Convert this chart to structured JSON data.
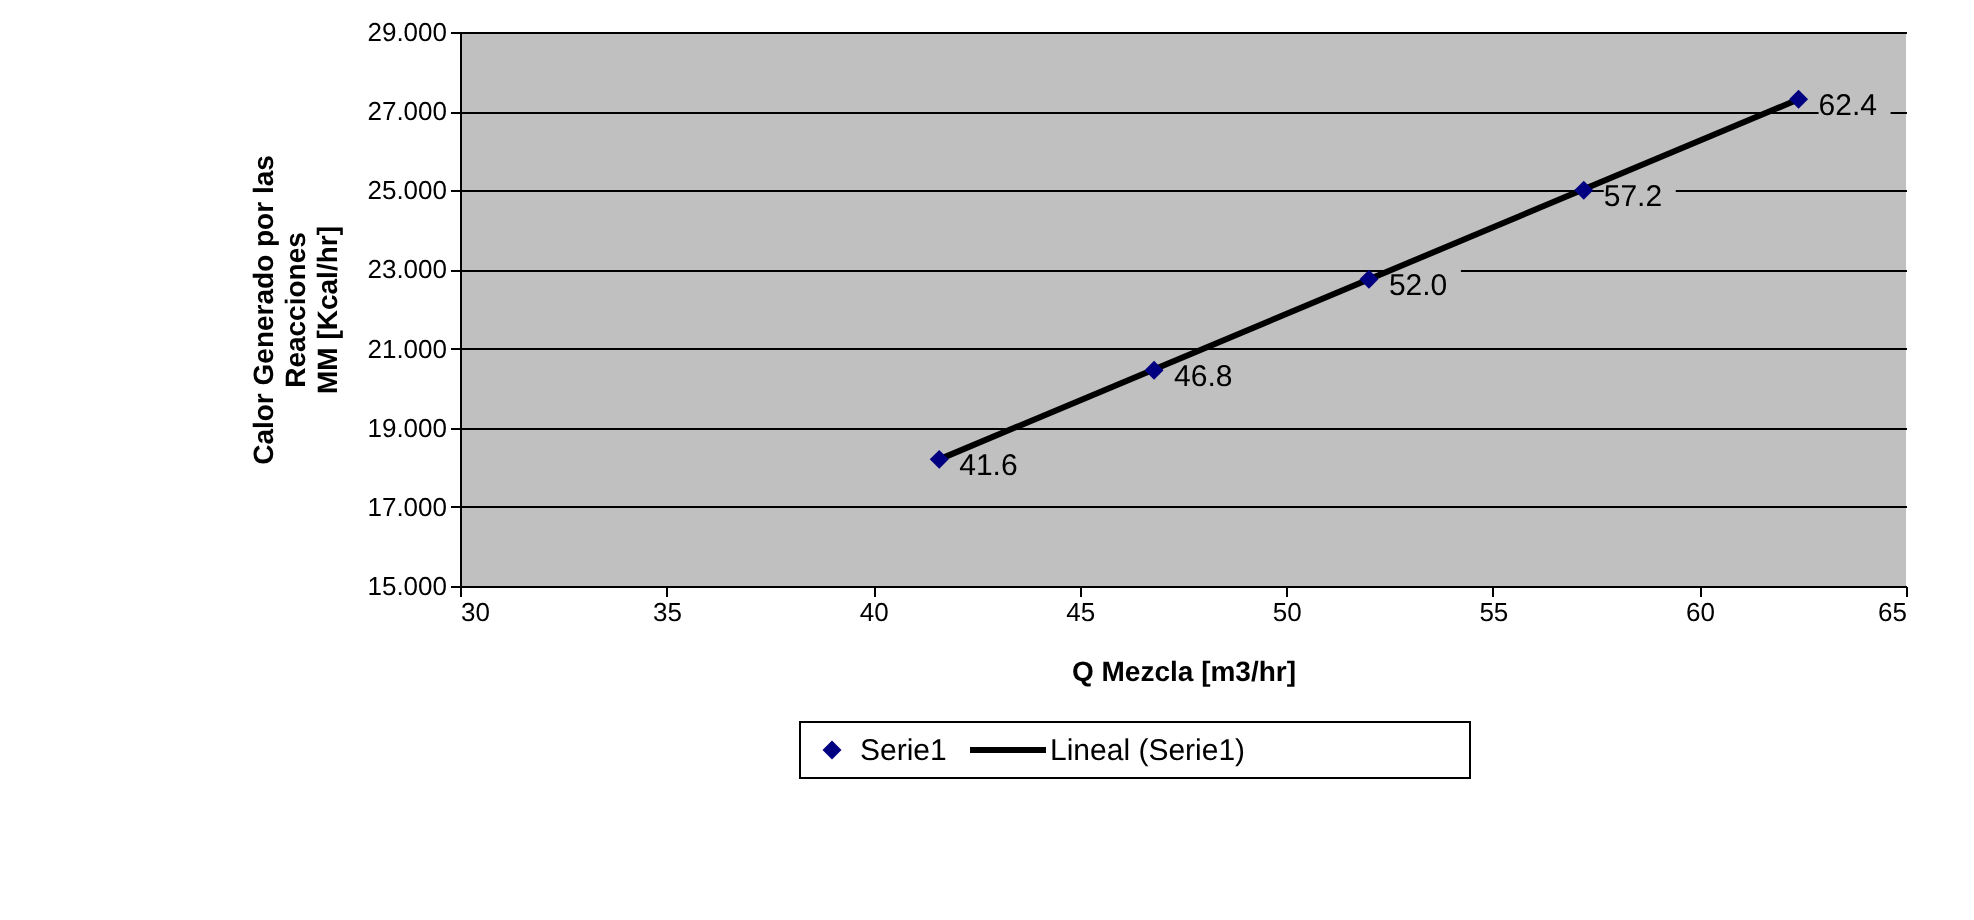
{
  "chart_data": {
    "type": "scatter",
    "xlabel": "Q Mezcla [m3/hr]",
    "ylabel": "Calor Generado por las\nReacciones\nMM [Kcal/hr]",
    "xlim": [
      30,
      65
    ],
    "xticks": [
      30,
      35,
      40,
      45,
      50,
      55,
      60,
      65
    ],
    "ylim": [
      15,
      29
    ],
    "yticks": [
      {
        "value": 15,
        "label": "15.000"
      },
      {
        "value": 17,
        "label": "17.000"
      },
      {
        "value": 19,
        "label": "19.000"
      },
      {
        "value": 21,
        "label": "21.000"
      },
      {
        "value": 23,
        "label": "23.000"
      },
      {
        "value": 25,
        "label": "25.000"
      },
      {
        "value": 27,
        "label": "27.000"
      },
      {
        "value": 29,
        "label": "29.000"
      }
    ],
    "grid": "y",
    "legend": "bottom",
    "series": [
      {
        "name": "Serie1",
        "marker": "diamond",
        "color": "#000080",
        "x": [
          41.6,
          46.8,
          52.0,
          57.2,
          62.4
        ],
        "values": [
          18.2,
          20.45,
          22.75,
          25.0,
          27.3
        ]
      },
      {
        "name": "Lineal (Serie1)",
        "type": "line",
        "line_style": "solid",
        "color": "#000000",
        "x": [
          41.6,
          62.4
        ],
        "values": [
          18.2,
          27.3
        ]
      }
    ],
    "annotations": [
      {
        "text": "41.6",
        "x": 41.6,
        "y": 18.2
      },
      {
        "text": "46.8",
        "x": 46.8,
        "y": 20.45
      },
      {
        "text": "52.0",
        "x": 52.0,
        "y": 22.75
      },
      {
        "text": "57.2",
        "x": 57.2,
        "y": 25.0
      },
      {
        "text": "62.4",
        "x": 62.4,
        "y": 27.3
      }
    ]
  }
}
